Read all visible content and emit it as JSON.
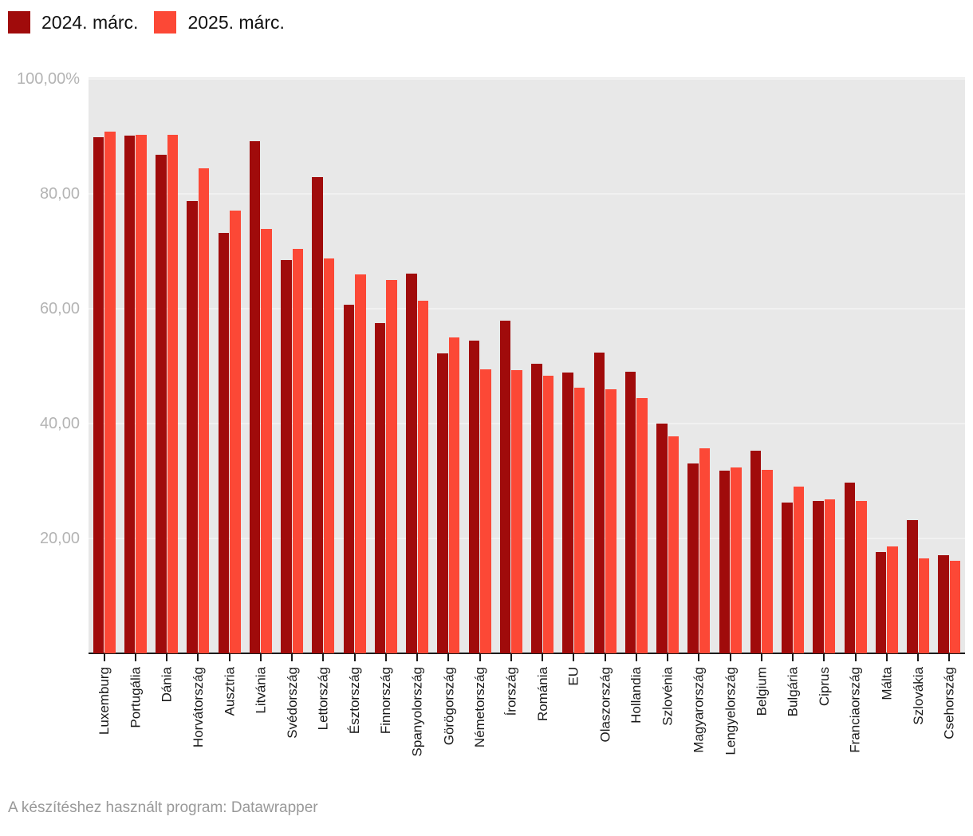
{
  "legend": {
    "items": [
      {
        "label": "2024. márc.",
        "color": "#a00b0b"
      },
      {
        "label": "2025. márc.",
        "color": "#fc4836"
      }
    ]
  },
  "y_axis": {
    "labels": [
      "100,00%",
      "80,00",
      "60,00",
      "40,00",
      "20,00"
    ],
    "values": [
      100,
      80,
      60,
      40,
      20
    ]
  },
  "footer": {
    "credit": "A készítéshez használt program: Datawrapper"
  },
  "chart_data": {
    "type": "bar",
    "title": "",
    "xlabel": "",
    "ylabel": "",
    "ylim": [
      0,
      100
    ],
    "value_format": "percent",
    "grid": "subtle horizontal white lines on gray plot background",
    "legend_position": "top-left",
    "plot_background": "#e8e8e8",
    "categories": [
      "Luxemburg",
      "Portugália",
      "Dánia",
      "Horvátország",
      "Ausztria",
      "Litvánia",
      "Svédország",
      "Lettország",
      "Észtország",
      "Finnország",
      "Spanyolország",
      "Görögország",
      "Németország",
      "Írország",
      "Románia",
      "EU",
      "Olaszország",
      "Hollandia",
      "Szlovénia",
      "Magyarország",
      "Lengyelország",
      "Belgium",
      "Bulgária",
      "Ciprus",
      "Franciaország",
      "Málta",
      "Szlovákia",
      "Csehország"
    ],
    "series": [
      {
        "name": "2024. márc.",
        "color": "#a00b0b",
        "values": [
          89.9,
          90.1,
          86.8,
          78.8,
          73.2,
          89.2,
          68.5,
          82.9,
          60.7,
          57.5,
          66.1,
          52.2,
          54.4,
          57.9,
          50.4,
          48.9,
          52.4,
          49.0,
          40.0,
          33.1,
          31.8,
          35.3,
          26.3,
          26.5,
          29.7,
          17.6,
          23.2,
          17.1
        ]
      },
      {
        "name": "2025. márc.",
        "color": "#fc4836",
        "values": [
          90.8,
          90.3,
          90.3,
          84.4,
          77.1,
          73.9,
          70.4,
          68.8,
          66.0,
          65.0,
          61.4,
          55.0,
          49.5,
          49.3,
          48.3,
          46.3,
          46.0,
          44.4,
          37.8,
          35.7,
          32.4,
          31.9,
          29.0,
          26.8,
          26.5,
          18.6,
          16.5,
          16.1
        ]
      }
    ]
  }
}
